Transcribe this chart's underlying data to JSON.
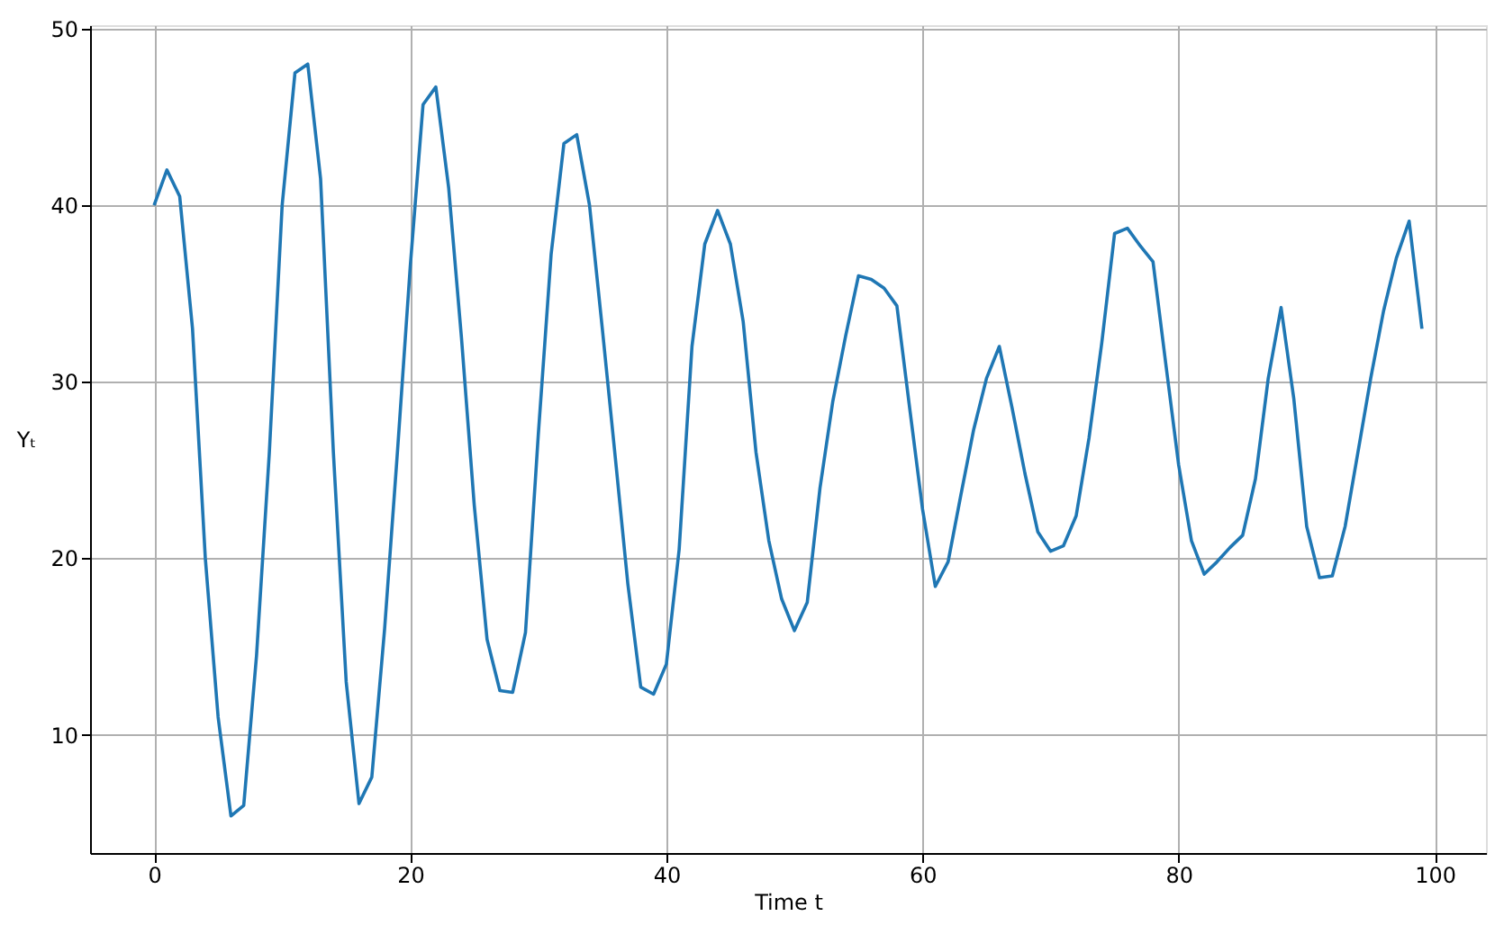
{
  "chart_data": {
    "type": "line",
    "xlabel": "Time t",
    "ylabel": "Yₜ",
    "x": [
      0,
      1,
      2,
      3,
      4,
      5,
      6,
      7,
      8,
      9,
      10,
      11,
      12,
      13,
      14,
      15,
      16,
      17,
      18,
      19,
      20,
      21,
      22,
      23,
      24,
      25,
      26,
      27,
      28,
      29,
      30,
      31,
      32,
      33,
      34,
      35,
      36,
      37,
      38,
      39,
      40,
      41,
      42,
      43,
      44,
      45,
      46,
      47,
      48,
      49,
      50,
      51,
      52,
      53,
      54,
      55,
      56,
      57,
      58,
      59,
      60,
      61,
      62,
      63,
      64,
      65,
      66,
      67,
      68,
      69,
      70,
      71,
      72,
      73,
      74,
      75,
      76,
      77,
      78,
      79,
      80,
      81,
      82,
      83,
      84,
      85,
      86,
      87,
      88,
      89,
      90,
      91,
      92,
      93,
      94,
      95,
      96,
      97,
      98,
      99
    ],
    "series": [
      {
        "color": "#1f77b4",
        "values": [
          40,
          42,
          40.5,
          33,
          20,
          11,
          5.4,
          6,
          14.5,
          26,
          40,
          47.5,
          48,
          41.5,
          26,
          13,
          6.1,
          7.6,
          16,
          26,
          36.5,
          45.7,
          46.7,
          41,
          32.5,
          23,
          15.4,
          12.5,
          12.4,
          15.8,
          27,
          37.2,
          43.5,
          44,
          40,
          33,
          25.8,
          18.5,
          12.7,
          12.3,
          14,
          20.5,
          32,
          37.8,
          39.7,
          37.8,
          33.4,
          26,
          21,
          17.7,
          15.9,
          17.5,
          24,
          28.9,
          32.6,
          36,
          35.8,
          35.3,
          34.3,
          28.5,
          22.8,
          18.4,
          19.8,
          23.6,
          27.3,
          30.2,
          32,
          28.5,
          24.8,
          21.5,
          20.4,
          20.7,
          22.4,
          26.8,
          32.2,
          38.4,
          38.7,
          37.7,
          36.8,
          31,
          25.3,
          21,
          19.1,
          19.8,
          20.6,
          21.3,
          24.5,
          30.2,
          34.2,
          29,
          21.8,
          18.9,
          19,
          21.8,
          26,
          30.2,
          34,
          37,
          39.1,
          33
        ]
      }
    ],
    "xlim": [
      -5,
      104
    ],
    "ylim": [
      3.3,
      50.2
    ],
    "xticks": [
      0,
      20,
      40,
      60,
      80,
      100
    ],
    "yticks": [
      10,
      20,
      30,
      40,
      50
    ],
    "grid": true,
    "line_style": "solid"
  }
}
